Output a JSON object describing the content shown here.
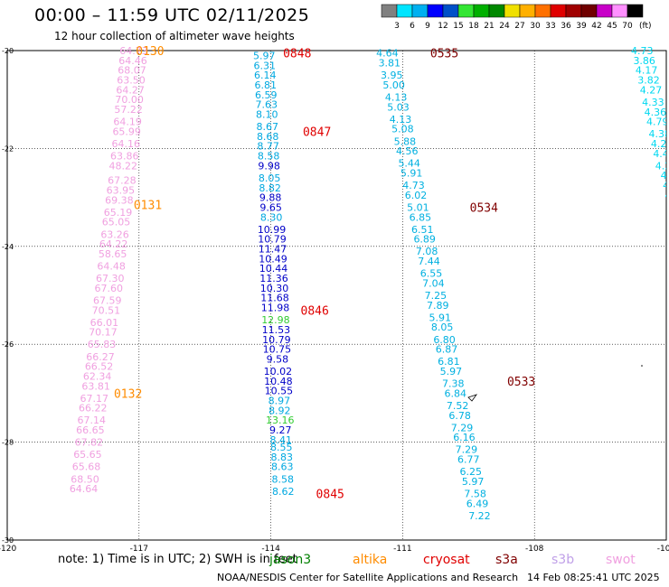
{
  "header": {
    "title": "00:00 – 11:59 UTC 02/11/2025",
    "subtitle": "12 hour collection of altimeter wave heights"
  },
  "colorbar": {
    "ticks": [
      "3",
      "6",
      "9",
      "12",
      "15",
      "18",
      "21",
      "24",
      "27",
      "30",
      "33",
      "36",
      "39",
      "42",
      "45",
      "70"
    ],
    "unit": "(ft)",
    "colors": [
      "#808080",
      "#00e5ff",
      "#00b0f0",
      "#0000ff",
      "#0050c8",
      "#33e633",
      "#00b000",
      "#008800",
      "#f0e000",
      "#ffb000",
      "#ff7000",
      "#e00000",
      "#a00000",
      "#700000",
      "#c800c8",
      "#ff90ff",
      "#000000"
    ]
  },
  "footer": {
    "note": "note: 1) Time is in UTC; 2) SWH is in feet",
    "credit": "NOAA/NESDIS Center for Satellite Applications and Research",
    "timestamp": "14 Feb 08:25:41 UTC 2025",
    "legend": [
      {
        "label": "jason3",
        "color": "#008000"
      },
      {
        "label": "altika",
        "color": "#ff8c00"
      },
      {
        "label": "cryosat",
        "color": "#e00000"
      },
      {
        "label": "s3a",
        "color": "#800000"
      },
      {
        "label": "s3b",
        "color": "#c0a0e8"
      },
      {
        "label": "swot",
        "color": "#f0a0e0"
      }
    ]
  },
  "chart_data": {
    "type": "scatter",
    "title": "",
    "xlim": [
      -120,
      -105
    ],
    "ylim": [
      -30,
      -20
    ],
    "xticks": [
      "-120",
      "-117",
      "-114",
      "-111",
      "-108",
      "-105"
    ],
    "yticks": [
      "-20",
      "-22",
      "-24",
      "-26",
      "-28",
      "-30"
    ],
    "grid": true,
    "pass_labels": [
      {
        "text": "0130",
        "lon": -116.75,
        "lat": -20.0,
        "color": "#ff8c00"
      },
      {
        "text": "0131",
        "lon": -116.8,
        "lat": -23.15,
        "color": "#ff8c00"
      },
      {
        "text": "0132",
        "lon": -117.25,
        "lat": -27.0,
        "color": "#ff8c00"
      },
      {
        "text": "0848",
        "lon": -113.4,
        "lat": -20.05,
        "color": "#e00000"
      },
      {
        "text": "0847",
        "lon": -112.95,
        "lat": -21.65,
        "color": "#e00000"
      },
      {
        "text": "0846",
        "lon": -113.0,
        "lat": -25.3,
        "color": "#e00000"
      },
      {
        "text": "0845",
        "lon": -112.65,
        "lat": -29.05,
        "color": "#e00000"
      },
      {
        "text": "0535",
        "lon": -110.05,
        "lat": -20.05,
        "color": "#800000"
      },
      {
        "text": "0534",
        "lon": -109.15,
        "lat": -23.2,
        "color": "#800000"
      },
      {
        "text": "0533",
        "lon": -108.3,
        "lat": -26.75,
        "color": "#800000"
      }
    ],
    "series": [
      {
        "name": "swot",
        "color": "#f0a0e0",
        "values": [
          [
            -117.12,
            -20.0,
            "64.73"
          ],
          [
            -117.14,
            -20.2,
            "64.46"
          ],
          [
            -117.16,
            -20.4,
            "68.07"
          ],
          [
            -117.18,
            -20.6,
            "63.50"
          ],
          [
            -117.2,
            -20.8,
            "64.27"
          ],
          [
            -117.22,
            -21.0,
            "70.00"
          ],
          [
            -117.24,
            -21.2,
            "57.22"
          ],
          [
            -117.26,
            -21.45,
            "64.19"
          ],
          [
            -117.28,
            -21.65,
            "65.99"
          ],
          [
            -117.3,
            -21.9,
            "64.16"
          ],
          [
            -117.33,
            -22.15,
            "63.86"
          ],
          [
            -117.36,
            -22.35,
            "48.22"
          ],
          [
            -117.39,
            -22.65,
            "67.28"
          ],
          [
            -117.42,
            -22.85,
            "63.95"
          ],
          [
            -117.45,
            -23.05,
            "69.38"
          ],
          [
            -117.48,
            -23.3,
            "65.19"
          ],
          [
            -117.52,
            -23.5,
            "65.05"
          ],
          [
            -117.55,
            -23.75,
            "63.26"
          ],
          [
            -117.58,
            -23.95,
            "64.22"
          ],
          [
            -117.6,
            -24.15,
            "58.65"
          ],
          [
            -117.63,
            -24.4,
            "64.48"
          ],
          [
            -117.66,
            -24.65,
            "67.30"
          ],
          [
            -117.69,
            -24.85,
            "67.60"
          ],
          [
            -117.72,
            -25.1,
            "67.59"
          ],
          [
            -117.75,
            -25.3,
            "70.51"
          ],
          [
            -117.79,
            -25.55,
            "66.01"
          ],
          [
            -117.82,
            -25.75,
            "70.17"
          ],
          [
            -117.85,
            -26.0,
            "65.83"
          ],
          [
            -117.88,
            -26.25,
            "66.27"
          ],
          [
            -117.91,
            -26.45,
            "66.52"
          ],
          [
            -117.95,
            -26.65,
            "62.34"
          ],
          [
            -117.98,
            -26.85,
            "63.81"
          ],
          [
            -118.02,
            -27.1,
            "67.17"
          ],
          [
            -118.05,
            -27.3,
            "66.22"
          ],
          [
            -118.08,
            -27.55,
            "67.14"
          ],
          [
            -118.11,
            -27.75,
            "66.65"
          ],
          [
            -118.14,
            -28.0,
            "67.82"
          ],
          [
            -118.17,
            -28.25,
            "65.65"
          ],
          [
            -118.2,
            -28.5,
            "65.68"
          ],
          [
            -118.23,
            -28.75,
            "68.50"
          ],
          [
            -118.26,
            -28.95,
            "64.64"
          ]
        ]
      },
      {
        "name": "swot-east",
        "color": "#00d8f0",
        "values": [
          [
            -105.55,
            -20.0,
            "4.73"
          ],
          [
            -105.5,
            -20.2,
            "3.86"
          ],
          [
            -105.45,
            -20.4,
            "4.17"
          ],
          [
            -105.4,
            -20.6,
            "3.82"
          ],
          [
            -105.35,
            -20.8,
            "4.27"
          ],
          [
            -105.3,
            -21.05,
            "4.33"
          ],
          [
            -105.25,
            -21.25,
            "4.36"
          ],
          [
            -105.2,
            -21.45,
            "4.79"
          ],
          [
            -105.15,
            -21.7,
            "4.38"
          ],
          [
            -105.1,
            -21.9,
            "4.29"
          ],
          [
            -105.05,
            -22.1,
            "4.47"
          ],
          [
            -105.0,
            -22.35,
            "4.25"
          ],
          [
            -104.95,
            -22.55,
            "4.7"
          ],
          [
            -104.9,
            -22.75,
            "4.6"
          ],
          [
            -104.85,
            -22.95,
            "4.8"
          ],
          [
            -104.8,
            -23.15,
            "4.4"
          ],
          [
            -104.75,
            -23.35,
            "4.6"
          ],
          [
            -104.7,
            -23.55,
            "4.2"
          ],
          [
            -104.65,
            -23.75,
            "4.0"
          ],
          [
            -104.6,
            -23.95,
            "4.1"
          ]
        ]
      },
      {
        "name": "cryosat",
        "color": "#0000ff",
        "values": [
          [
            -114.15,
            -20.1,
            "5.97"
          ],
          [
            -114.14,
            -20.3,
            "6.31"
          ],
          [
            -114.13,
            -20.5,
            "6.14"
          ],
          [
            -114.12,
            -20.7,
            "6.81"
          ],
          [
            -114.11,
            -20.9,
            "6.59"
          ],
          [
            -114.1,
            -21.1,
            "7.63"
          ],
          [
            -114.09,
            -21.3,
            "8.10"
          ],
          [
            -114.08,
            -21.55,
            "8.67"
          ],
          [
            -114.07,
            -21.75,
            "8.68"
          ],
          [
            -114.06,
            -21.95,
            "8.77"
          ],
          [
            -114.05,
            -22.15,
            "8.58"
          ],
          [
            -114.04,
            -22.35,
            "9.98"
          ],
          [
            -114.03,
            -22.6,
            "8.05"
          ],
          [
            -114.02,
            -22.8,
            "8.82"
          ],
          [
            -114.01,
            -23.0,
            "9.88"
          ],
          [
            -114.0,
            -23.2,
            "9.65"
          ],
          [
            -113.99,
            -23.4,
            "8.30"
          ],
          [
            -113.98,
            -23.65,
            "10.99"
          ],
          [
            -113.97,
            -23.85,
            "10.79"
          ],
          [
            -113.96,
            -24.05,
            "11.47"
          ],
          [
            -113.95,
            -24.25,
            "10.49"
          ],
          [
            -113.94,
            -24.45,
            "10.44"
          ],
          [
            -113.93,
            -24.65,
            "11.36"
          ],
          [
            -113.92,
            -24.85,
            "10.30"
          ],
          [
            -113.91,
            -25.05,
            "11.68"
          ],
          [
            -113.9,
            -25.25,
            "11.98"
          ],
          [
            -113.89,
            -25.5,
            "12.98"
          ],
          [
            -113.88,
            -25.7,
            "11.53"
          ],
          [
            -113.87,
            -25.9,
            "10.79"
          ],
          [
            -113.86,
            -26.1,
            "10.75"
          ],
          [
            -113.85,
            -26.3,
            "9.58"
          ],
          [
            -113.84,
            -26.55,
            "10.02"
          ],
          [
            -113.83,
            -26.75,
            "10.48"
          ],
          [
            -113.82,
            -26.95,
            "10.55"
          ],
          [
            -113.81,
            -27.15,
            "8.97"
          ],
          [
            -113.8,
            -27.35,
            "8.92"
          ],
          [
            -113.79,
            -27.55,
            "13.16"
          ],
          [
            -113.78,
            -27.75,
            "9.27"
          ],
          [
            -113.77,
            -27.95,
            "8.41"
          ],
          [
            -113.76,
            -28.1,
            "8.55"
          ],
          [
            -113.75,
            -28.3,
            "8.83"
          ],
          [
            -113.74,
            -28.5,
            "8.63"
          ],
          [
            -113.73,
            -28.75,
            "8.58"
          ],
          [
            -113.72,
            -29.0,
            "8.62"
          ]
        ]
      },
      {
        "name": "s3a",
        "color": "#00b0e0",
        "values": [
          [
            -111.35,
            -20.05,
            "4.64"
          ],
          [
            -111.3,
            -20.25,
            "3.81"
          ],
          [
            -111.25,
            -20.5,
            "3.95"
          ],
          [
            -111.2,
            -20.7,
            "5.00"
          ],
          [
            -111.15,
            -20.95,
            "4.13"
          ],
          [
            -111.1,
            -21.15,
            "5.03"
          ],
          [
            -111.05,
            -21.4,
            "4.13"
          ],
          [
            -111.0,
            -21.6,
            "5.08"
          ],
          [
            -110.95,
            -21.85,
            "5.88"
          ],
          [
            -110.9,
            -22.05,
            "4.56"
          ],
          [
            -110.85,
            -22.3,
            "5.44"
          ],
          [
            -110.8,
            -22.5,
            "5.91"
          ],
          [
            -110.75,
            -22.75,
            "4.73"
          ],
          [
            -110.7,
            -22.95,
            "6.02"
          ],
          [
            -110.65,
            -23.2,
            "5.01"
          ],
          [
            -110.6,
            -23.4,
            "6.85"
          ],
          [
            -110.55,
            -23.65,
            "6.51"
          ],
          [
            -110.5,
            -23.85,
            "6.89"
          ],
          [
            -110.45,
            -24.1,
            "7.08"
          ],
          [
            -110.4,
            -24.3,
            "7.44"
          ],
          [
            -110.35,
            -24.55,
            "6.55"
          ],
          [
            -110.3,
            -24.75,
            "7.04"
          ],
          [
            -110.25,
            -25.0,
            "7.25"
          ],
          [
            -110.2,
            -25.2,
            "7.89"
          ],
          [
            -110.15,
            -25.45,
            "5.91"
          ],
          [
            -110.1,
            -25.65,
            "8.05"
          ],
          [
            -110.05,
            -25.9,
            "6.80"
          ],
          [
            -110.0,
            -26.1,
            "6.87"
          ],
          [
            -109.95,
            -26.35,
            "6.81"
          ],
          [
            -109.9,
            -26.55,
            "5.97"
          ],
          [
            -109.85,
            -26.8,
            "7.38"
          ],
          [
            -109.8,
            -27.0,
            "6.84"
          ],
          [
            -109.75,
            -27.25,
            "7.52"
          ],
          [
            -109.7,
            -27.45,
            "6.78"
          ],
          [
            -109.65,
            -27.7,
            "7.29"
          ],
          [
            -109.6,
            -27.9,
            "6.16"
          ],
          [
            -109.55,
            -28.15,
            "7.29"
          ],
          [
            -109.5,
            -28.35,
            "6.77"
          ],
          [
            -109.45,
            -28.6,
            "6.25"
          ],
          [
            -109.4,
            -28.8,
            "5.97"
          ],
          [
            -109.35,
            -29.05,
            "7.58"
          ],
          [
            -109.3,
            -29.25,
            "6.49"
          ],
          [
            -109.25,
            -29.5,
            "7.22"
          ]
        ]
      }
    ]
  }
}
